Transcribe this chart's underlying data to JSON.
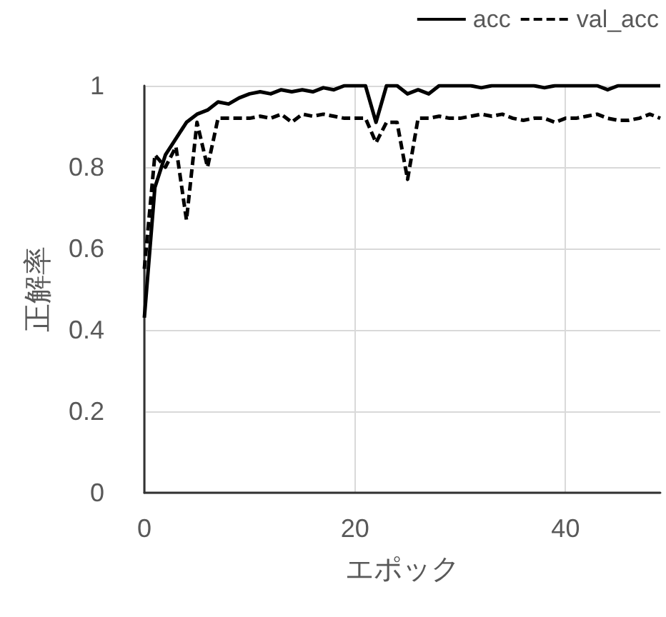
{
  "chart_data": {
    "type": "line",
    "xlabel": "エポック",
    "ylabel": "正解率",
    "x": [
      0,
      1,
      2,
      3,
      4,
      5,
      6,
      7,
      8,
      9,
      10,
      11,
      12,
      13,
      14,
      15,
      16,
      17,
      18,
      19,
      20,
      21,
      22,
      23,
      24,
      25,
      26,
      27,
      28,
      29,
      30,
      31,
      32,
      33,
      34,
      35,
      36,
      37,
      38,
      39,
      40,
      41,
      42,
      43,
      44,
      45,
      46,
      47,
      48,
      49
    ],
    "series": [
      {
        "name": "acc",
        "color": "#000000",
        "line_style": "solid",
        "values": [
          0.43,
          0.75,
          0.83,
          0.87,
          0.91,
          0.93,
          0.94,
          0.96,
          0.955,
          0.97,
          0.98,
          0.985,
          0.98,
          0.99,
          0.985,
          0.99,
          0.985,
          0.995,
          0.99,
          1,
          1,
          1,
          0.91,
          1,
          1,
          0.98,
          0.99,
          0.98,
          1,
          1,
          1,
          1,
          0.995,
          1,
          1,
          1,
          1,
          1,
          0.995,
          1,
          1,
          1,
          1,
          1,
          0.99,
          1,
          1,
          1,
          1,
          1
        ]
      },
      {
        "name": "val_acc",
        "color": "#000000",
        "line_style": "dashed",
        "values": [
          0.55,
          0.83,
          0.8,
          0.85,
          0.67,
          0.91,
          0.8,
          0.92,
          0.92,
          0.92,
          0.92,
          0.925,
          0.92,
          0.93,
          0.91,
          0.93,
          0.925,
          0.93,
          0.925,
          0.92,
          0.92,
          0.92,
          0.86,
          0.91,
          0.91,
          0.77,
          0.92,
          0.92,
          0.925,
          0.92,
          0.92,
          0.925,
          0.93,
          0.925,
          0.93,
          0.92,
          0.915,
          0.92,
          0.92,
          0.91,
          0.92,
          0.92,
          0.925,
          0.93,
          0.92,
          0.915,
          0.915,
          0.92,
          0.93,
          0.92
        ]
      }
    ],
    "xlim": [
      0,
      49
    ],
    "xticks": [
      0,
      20,
      40
    ],
    "ylim": [
      0,
      1
    ],
    "yticks": [
      0,
      0.2,
      0.4,
      0.6,
      0.8,
      1
    ],
    "grid": true,
    "legend": "top right",
    "marker": "none"
  }
}
